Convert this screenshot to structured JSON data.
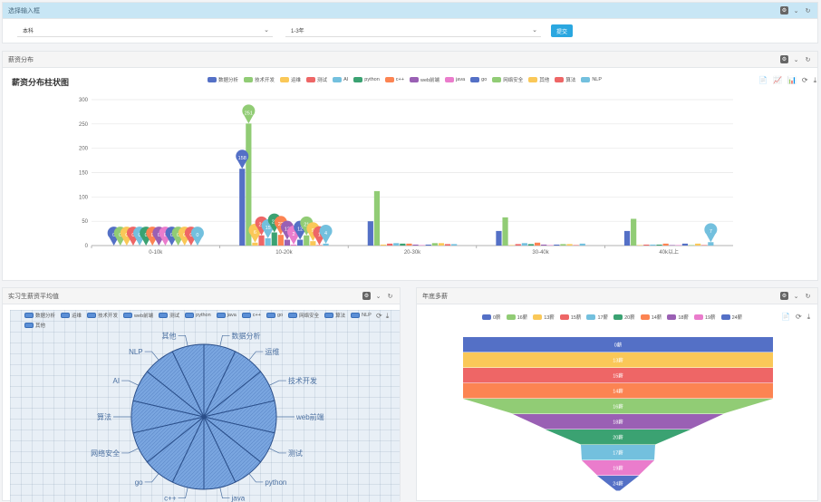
{
  "input_panel": {
    "title": "选择输入框",
    "degree_select": {
      "value": "本科"
    },
    "experience_select": {
      "value": "1-3年"
    },
    "submit_label": "提交"
  },
  "salary_panel": {
    "title": "薪资分布",
    "chart_title": "薪资分布柱状图",
    "toolbox": [
      "📄",
      "📈",
      "📊",
      "⟳",
      "⤓"
    ]
  },
  "intern_panel": {
    "title": "实习生薪资平均值"
  },
  "years_panel": {
    "title": "年底多薪"
  },
  "icons": {
    "gear": "⚙",
    "collapse": "⌄",
    "refresh": "↻"
  },
  "chart_data": [
    {
      "type": "bar",
      "title": "薪资分布柱状图",
      "categories": [
        "0-10k",
        "10-20k",
        "20-30k",
        "30-40k",
        "40k以上"
      ],
      "ylim": [
        0,
        300
      ],
      "yticks": [
        "0",
        "50",
        "100",
        "150",
        "200",
        "250",
        "300"
      ],
      "series": [
        {
          "name": "数据分析",
          "color": "#5470c6",
          "values": [
            0,
            158,
            50,
            30,
            30
          ]
        },
        {
          "name": "技术开发",
          "color": "#91cc75",
          "values": [
            0,
            251,
            112,
            58,
            55
          ]
        },
        {
          "name": "运维",
          "color": "#fac858",
          "values": [
            0,
            6,
            2,
            1,
            1
          ]
        },
        {
          "name": "测试",
          "color": "#ee6666",
          "values": [
            0,
            21,
            4,
            3,
            2
          ]
        },
        {
          "name": "AI",
          "color": "#73c0de",
          "values": [
            0,
            15,
            5,
            5,
            2
          ]
        },
        {
          "name": "python",
          "color": "#3ba272",
          "values": [
            0,
            27,
            4,
            3,
            2
          ]
        },
        {
          "name": "c++",
          "color": "#fc8452",
          "values": [
            0,
            22,
            4,
            6,
            4
          ]
        },
        {
          "name": "web前端",
          "color": "#9a60b4",
          "values": [
            0,
            12,
            2,
            2,
            1
          ]
        },
        {
          "name": "java",
          "color": "#ea7ccc",
          "values": [
            0,
            2,
            1,
            1,
            1
          ]
        },
        {
          "name": "go",
          "color": "#5470c6",
          "values": [
            0,
            12,
            2,
            2,
            4
          ]
        },
        {
          "name": "网络安全",
          "color": "#91cc75",
          "values": [
            0,
            21,
            5,
            3,
            1
          ]
        },
        {
          "name": "其他",
          "color": "#fac858",
          "values": [
            0,
            9,
            5,
            3,
            4
          ]
        },
        {
          "name": "算法",
          "color": "#ee6666",
          "values": [
            0,
            1,
            3,
            1,
            1
          ]
        },
        {
          "name": "NLP",
          "color": "#73c0de",
          "values": [
            0,
            4,
            3,
            4,
            7
          ]
        }
      ],
      "marker_labels": {
        "0-10k": [
          "0",
          "0",
          "0",
          "0",
          "0",
          "0",
          "0",
          "0",
          "0",
          "0",
          "0",
          "0",
          "0",
          "0"
        ],
        "10-20k": [
          "158",
          "251",
          "6",
          "21",
          "15",
          "27",
          "22",
          "12",
          "2",
          "12",
          "21",
          "9",
          "1",
          "4"
        ]
      },
      "extra_marker": {
        "category": "40k以上",
        "series": "NLP",
        "label": "7"
      }
    },
    {
      "type": "pie",
      "title": "",
      "legend": [
        "数据分析",
        "运维",
        "技术开发",
        "web前端",
        "测试",
        "python",
        "java",
        "c++",
        "go",
        "网络安全",
        "算法",
        "NLP",
        "其他"
      ],
      "slices": [
        {
          "name": "数据分析",
          "value": 1.0
        },
        {
          "name": "运维",
          "value": 1.0
        },
        {
          "name": "技术开发",
          "value": 1.0
        },
        {
          "name": "web前端",
          "value": 1.0
        },
        {
          "name": "测试",
          "value": 1.0
        },
        {
          "name": "python",
          "value": 1.0
        },
        {
          "name": "java",
          "value": 1.0
        },
        {
          "name": "c++",
          "value": 1.0
        },
        {
          "name": "go",
          "value": 1.0
        },
        {
          "name": "网络安全",
          "value": 1.0
        },
        {
          "name": "算法",
          "value": 1.0
        },
        {
          "name": "AI",
          "value": 1.0
        },
        {
          "name": "NLP",
          "value": 1.0
        },
        {
          "name": "其他",
          "value": 1.0
        }
      ]
    },
    {
      "type": "funnel",
      "title": "",
      "legend": [
        {
          "name": "0薪",
          "color": "#5470c6"
        },
        {
          "name": "16薪",
          "color": "#91cc75"
        },
        {
          "name": "13薪",
          "color": "#fac858"
        },
        {
          "name": "15薪",
          "color": "#ee6666"
        },
        {
          "name": "17薪",
          "color": "#73c0de"
        },
        {
          "name": "20薪",
          "color": "#3ba272"
        },
        {
          "name": "14薪",
          "color": "#fc8452"
        },
        {
          "name": "18薪",
          "color": "#9a60b4"
        },
        {
          "name": "19薪",
          "color": "#ea7ccc"
        },
        {
          "name": "24薪",
          "color": "#5470c6"
        }
      ],
      "stages": [
        {
          "name": "0薪",
          "color": "#5470c6"
        },
        {
          "name": "13薪",
          "color": "#fac858"
        },
        {
          "name": "15薪",
          "color": "#ee6666"
        },
        {
          "name": "14薪",
          "color": "#fc8452"
        },
        {
          "name": "16薪",
          "color": "#91cc75"
        },
        {
          "name": "18薪",
          "color": "#9a60b4"
        },
        {
          "name": "20薪",
          "color": "#3ba272"
        },
        {
          "name": "17薪",
          "color": "#73c0de"
        },
        {
          "name": "19薪",
          "color": "#ea7ccc"
        },
        {
          "name": "24薪",
          "color": "#5470c6"
        }
      ]
    }
  ]
}
